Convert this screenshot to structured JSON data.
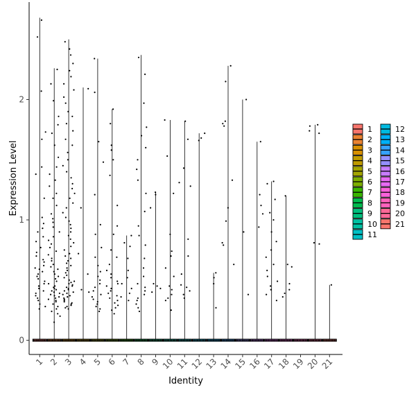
{
  "chart_data": {
    "type": "violin",
    "title": "",
    "xlabel": "Identity",
    "ylabel": "Expression Level",
    "ylim": [
      -0.12,
      2.82
    ],
    "yticks": [
      0,
      1,
      2
    ],
    "categories": [
      "1",
      "2",
      "3",
      "4",
      "5",
      "6",
      "7",
      "8",
      "9",
      "10",
      "11",
      "12",
      "13",
      "14",
      "15",
      "16",
      "17",
      "18",
      "19",
      "20",
      "21"
    ],
    "colors": [
      "#F8766D",
      "#EA8331",
      "#D89000",
      "#C09B00",
      "#A3A500",
      "#7CAE00",
      "#39B600",
      "#00BB4E",
      "#00BF7D",
      "#00C1A3",
      "#00BFC4",
      "#00BAE0",
      "#00B0F6",
      "#35A2FF",
      "#9590FF",
      "#C77CFF",
      "#E76BF3",
      "#FA62DB",
      "#FF62BC",
      "#FF6A98",
      "#F8766D"
    ],
    "max": [
      2.68,
      2.26,
      2.5,
      2.1,
      2.34,
      1.92,
      0.87,
      2.37,
      1.23,
      1.83,
      1.82,
      1.72,
      0.56,
      2.28,
      2.0,
      1.65,
      1.32,
      1.2,
      0.0,
      1.79,
      0.46
    ],
    "nonzero_points": [
      [
        2.66,
        2.52,
        2.07,
        1.73,
        1.67,
        1.44,
        1.38,
        1.18,
        1.02,
        0.97,
        0.93,
        0.9,
        0.86,
        0.82,
        0.77,
        0.73,
        0.7,
        0.67,
        0.65,
        0.62,
        0.6,
        0.59,
        0.57,
        0.55,
        0.53,
        0.51,
        0.49,
        0.47,
        0.45,
        0.43,
        0.41,
        0.39,
        0.37,
        0.35,
        0.33,
        0.3,
        0.28,
        0.26
      ],
      [
        2.25,
        2.13,
        1.99,
        1.86,
        1.79,
        1.72,
        1.62,
        1.52,
        1.44,
        1.38,
        1.33,
        1.28,
        1.22,
        1.18,
        1.12,
        1.05,
        1.01,
        0.98,
        0.94,
        0.9,
        0.86,
        0.83,
        0.8,
        0.77,
        0.74,
        0.71,
        0.68,
        0.66,
        0.63,
        0.61,
        0.59,
        0.57,
        0.55,
        0.53,
        0.51,
        0.49,
        0.47,
        0.45,
        0.44,
        0.43,
        0.42,
        0.41,
        0.4,
        0.39,
        0.38,
        0.37,
        0.36,
        0.35,
        0.34,
        0.33,
        0.32,
        0.3,
        0.28,
        0.26,
        0.24,
        0.22,
        0.2,
        0.15
      ],
      [
        2.48,
        2.42,
        2.37,
        2.3,
        2.24,
        2.19,
        2.13,
        2.08,
        2.02,
        1.97,
        1.9,
        1.86,
        1.8,
        1.74,
        1.67,
        1.62,
        1.56,
        1.5,
        1.45,
        1.4,
        1.35,
        1.3,
        1.26,
        1.22,
        1.18,
        1.14,
        1.1,
        1.06,
        1.02,
        0.99,
        0.96,
        0.93,
        0.9,
        0.87,
        0.84,
        0.81,
        0.78,
        0.75,
        0.72,
        0.7,
        0.68,
        0.66,
        0.64,
        0.62,
        0.6,
        0.58,
        0.56,
        0.54,
        0.52,
        0.5,
        0.49,
        0.48,
        0.47,
        0.46,
        0.45,
        0.44,
        0.43,
        0.42,
        0.41,
        0.4,
        0.39,
        0.38,
        0.37,
        0.36,
        0.35,
        0.34,
        0.33,
        0.32,
        0.31,
        0.3,
        0.29,
        0.28,
        0.27,
        0.26
      ],
      [
        2.09,
        1.1,
        0.72,
        0.55,
        0.42,
        0.4
      ],
      [
        2.34,
        2.06,
        1.65,
        1.48,
        1.21,
        0.96,
        0.88,
        0.77,
        0.69,
        0.62,
        0.57,
        0.53,
        0.5,
        0.47,
        0.44,
        0.41,
        0.38,
        0.36,
        0.34,
        0.32,
        0.3,
        0.28,
        0.26,
        0.24
      ],
      [
        1.92,
        1.8,
        1.62,
        1.58,
        1.5,
        1.37,
        1.12,
        0.95,
        0.88,
        0.75,
        0.69,
        0.63,
        0.58,
        0.55,
        0.52,
        0.49,
        0.47,
        0.45,
        0.43,
        0.41,
        0.39,
        0.37,
        0.35,
        0.33,
        0.31,
        0.29,
        0.27,
        0.25,
        0.22
      ],
      [
        0.87,
        0.81,
        0.78,
        0.68,
        0.58,
        0.52,
        0.47,
        0.43,
        0.39,
        0.36,
        0.33
      ],
      [
        2.35,
        2.21,
        1.97,
        1.77,
        1.7,
        1.6,
        1.5,
        1.42,
        1.33,
        1.22,
        1.07,
        0.95,
        0.87,
        0.79,
        0.68,
        0.6,
        0.53,
        0.47,
        0.44,
        0.41,
        0.38,
        0.35,
        0.33,
        0.3,
        0.27,
        0.24
      ],
      [
        1.23,
        1.21,
        1.1,
        0.47,
        0.45,
        0.43,
        0.4
      ],
      [
        1.83,
        1.53,
        1.22,
        0.88,
        0.74,
        0.7,
        0.6,
        0.53,
        0.45,
        0.42,
        0.38,
        0.35,
        0.33,
        0.25
      ],
      [
        1.82,
        1.67,
        1.43,
        1.31,
        1.28,
        0.84,
        0.7,
        0.55,
        0.46,
        0.44,
        0.41,
        0.38,
        0.35
      ],
      [
        1.72,
        1.68,
        1.66
      ],
      [
        0.56,
        0.52,
        0.47,
        0.27
      ],
      [
        2.28,
        2.15,
        1.82,
        1.8,
        1.78,
        1.33,
        1.1,
        0.99,
        0.81,
        0.79,
        0.63
      ],
      [
        2.0,
        0.9,
        0.38
      ],
      [
        1.65,
        1.21,
        1.12,
        1.05,
        0.94
      ],
      [
        1.32,
        1.3,
        1.17,
        1.06,
        1.0,
        0.9,
        0.82,
        0.75,
        0.69,
        0.63,
        0.58,
        0.53,
        0.49,
        0.45,
        0.42,
        0.38,
        0.33
      ],
      [
        1.2,
        0.63,
        0.61,
        0.47,
        0.42,
        0.39,
        0.36
      ],
      [],
      [
        1.79,
        1.78,
        1.74,
        1.72,
        0.81,
        0.8
      ],
      [
        0.46
      ]
    ],
    "legend": {
      "placement": "right",
      "entries": [
        "1",
        "2",
        "3",
        "4",
        "5",
        "6",
        "7",
        "8",
        "9",
        "10",
        "11",
        "12",
        "13",
        "14",
        "15",
        "16",
        "17",
        "18",
        "19",
        "20",
        "21"
      ]
    }
  }
}
